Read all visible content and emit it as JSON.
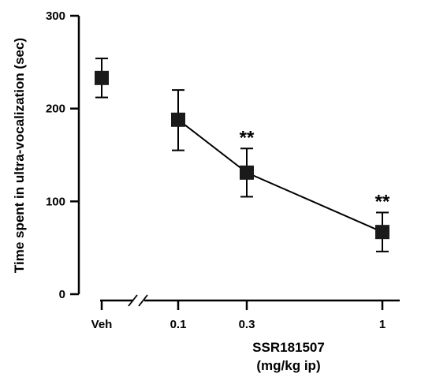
{
  "chart_data": {
    "type": "scatter",
    "title": "",
    "ylabel": "Time spent in ultra-vocalization (sec)",
    "xlabel": [
      "SSR181507",
      "(mg/kg ip)"
    ],
    "ylim": [
      0,
      300
    ],
    "y_ticks": [
      0,
      100,
      200,
      300
    ],
    "x_categories": [
      "Veh",
      "0.1",
      "0.3",
      "1"
    ],
    "axis_break": "between Veh and 0.1",
    "grid": false,
    "marker": "square",
    "color": "#1a1a1a",
    "points": [
      {
        "x": "Veh",
        "y": 233,
        "err_low": 212,
        "err_high": 254,
        "connected": false,
        "significance": ""
      },
      {
        "x": "0.1",
        "y": 188,
        "err_low": 155,
        "err_high": 220,
        "connected": true,
        "significance": ""
      },
      {
        "x": "0.3",
        "y": 131,
        "err_low": 105,
        "err_high": 157,
        "connected": true,
        "significance": "**"
      },
      {
        "x": "1",
        "y": 67,
        "err_low": 46,
        "err_high": 88,
        "connected": true,
        "significance": "**"
      }
    ]
  }
}
